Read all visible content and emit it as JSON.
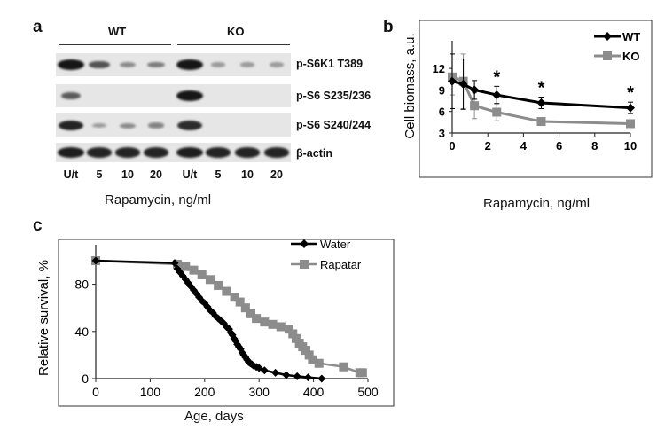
{
  "panel_a": {
    "letter": "a",
    "groups": [
      "WT",
      "KO"
    ],
    "blot_labels": [
      "p-S6K1  T389",
      "p-S6 S235/236",
      "p-S6 S240/244",
      "β-actin"
    ],
    "lanes": [
      "U/t",
      "5",
      "10",
      "20",
      "U/t",
      "5",
      "10",
      "20"
    ],
    "xlabel": "Rapamycin, ng/ml",
    "band_intensity": [
      [
        1.0,
        0.6,
        0.25,
        0.35,
        1.0,
        0.15,
        0.15,
        0.15
      ],
      [
        0.55,
        0,
        0,
        0,
        1.0,
        0,
        0,
        0
      ],
      [
        0.9,
        0.15,
        0.25,
        0.3,
        0.85,
        0,
        0,
        0
      ],
      [
        0.95,
        0.9,
        0.9,
        0.9,
        0.95,
        0.9,
        0.9,
        0.9
      ]
    ]
  },
  "panel_b": {
    "letter": "b",
    "ylabel": "Cell biomass, a.u.",
    "xlabel": "Rapamycin, ng/ml",
    "significance_marker": "*",
    "colors": {
      "WT": "#000000",
      "KO": "#8c8c8c"
    }
  },
  "panel_c": {
    "letter": "c",
    "ylabel": "Relative survival, %",
    "xlabel": "Age, days",
    "colors": {
      "Water": "#000000",
      "Rapatar": "#8c8c8c"
    }
  },
  "chart_data": [
    {
      "type": "line",
      "panel": "b",
      "title": "",
      "xlabel": "Rapamycin, ng/ml",
      "ylabel": "Cell biomass, a.u.",
      "xlim": [
        0,
        10
      ],
      "ylim": [
        3,
        13
      ],
      "xticks": [
        0,
        2,
        4,
        6,
        8,
        10
      ],
      "yticks": [
        3,
        6,
        9,
        12
      ],
      "legend_position": "top-right",
      "significance_x": [
        2.5,
        5,
        10
      ],
      "series": [
        {
          "name": "WT",
          "x": [
            0,
            0.625,
            1.25,
            2.5,
            5,
            10
          ],
          "y": [
            10.2,
            9.8,
            9.0,
            8.3,
            7.2,
            6.5
          ],
          "err": [
            3.8,
            3.5,
            1.3,
            1.2,
            0.8,
            0.8
          ],
          "marker": "diamond"
        },
        {
          "name": "KO",
          "x": [
            0,
            0.625,
            1.25,
            2.5,
            5,
            10
          ],
          "y": [
            10.8,
            10.2,
            6.8,
            5.9,
            4.6,
            4.3
          ],
          "err": [
            2.5,
            3.8,
            1.8,
            1.2,
            0.5,
            0.4
          ],
          "marker": "square"
        }
      ]
    },
    {
      "type": "line",
      "panel": "c",
      "title": "",
      "xlabel": "Age, days",
      "ylabel": "Relative survival, %",
      "xlim": [
        0,
        500
      ],
      "ylim": [
        0,
        100
      ],
      "xticks": [
        0,
        100,
        200,
        300,
        400,
        500
      ],
      "yticks": [
        0,
        40,
        80
      ],
      "legend_position": "top-right",
      "series": [
        {
          "name": "Water",
          "marker": "diamond",
          "x": [
            0,
            145,
            150,
            155,
            160,
            165,
            170,
            175,
            180,
            185,
            190,
            195,
            200,
            205,
            210,
            215,
            220,
            225,
            230,
            235,
            240,
            245,
            248,
            251,
            254,
            257,
            260,
            263,
            266,
            269,
            272,
            275,
            278,
            281,
            284,
            287,
            290,
            295,
            300,
            310,
            330,
            350,
            370,
            390,
            415
          ],
          "y": [
            100,
            98,
            93,
            90,
            87,
            84,
            81,
            78,
            75,
            72,
            69,
            66,
            64,
            61,
            58,
            56,
            53,
            51,
            49,
            47,
            44,
            42,
            39,
            37,
            34,
            32,
            29,
            27,
            25,
            22,
            20,
            18,
            16,
            14,
            13,
            12,
            11,
            10,
            9,
            7,
            5,
            3,
            2,
            1,
            0
          ]
        },
        {
          "name": "Rapatar",
          "marker": "square",
          "x": [
            0,
            150,
            165,
            180,
            195,
            210,
            225,
            240,
            255,
            265,
            275,
            285,
            295,
            310,
            325,
            340,
            355,
            362,
            368,
            374,
            380,
            386,
            392,
            398,
            410,
            455,
            485,
            490
          ],
          "y": [
            100,
            97,
            95,
            92,
            88,
            84,
            79,
            74,
            69,
            65,
            60,
            55,
            51,
            48,
            46,
            44,
            42,
            38,
            34,
            30,
            27,
            24,
            20,
            16,
            13,
            10,
            5,
            5
          ]
        }
      ]
    }
  ]
}
